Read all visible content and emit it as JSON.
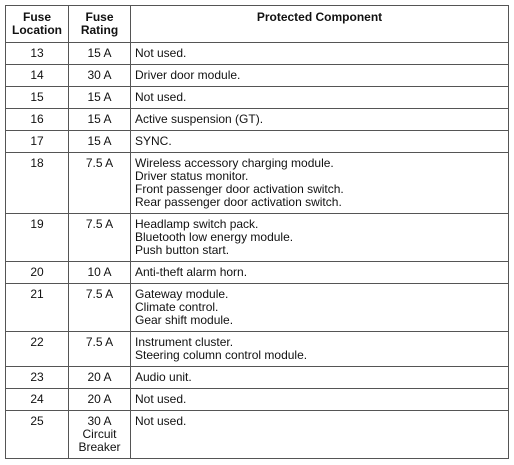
{
  "table": {
    "headers": {
      "location": [
        "Fuse",
        "Location"
      ],
      "rating": [
        "Fuse",
        "Rating"
      ],
      "component": "Protected Component"
    },
    "rows": [
      {
        "location": "13",
        "rating": [
          "15 A"
        ],
        "components": [
          "Not used."
        ]
      },
      {
        "location": "14",
        "rating": [
          "30 A"
        ],
        "components": [
          "Driver door module."
        ]
      },
      {
        "location": "15",
        "rating": [
          "15 A"
        ],
        "components": [
          "Not used."
        ]
      },
      {
        "location": "16",
        "rating": [
          "15 A"
        ],
        "components": [
          "Active suspension (GT)."
        ]
      },
      {
        "location": "17",
        "rating": [
          "15 A"
        ],
        "components": [
          "SYNC."
        ]
      },
      {
        "location": "18",
        "rating": [
          "7.5 A"
        ],
        "components": [
          "Wireless accessory charging module.",
          "Driver status monitor.",
          "Front passenger door activation switch.",
          "Rear passenger door activation switch."
        ]
      },
      {
        "location": "19",
        "rating": [
          "7.5 A"
        ],
        "components": [
          "Headlamp switch pack.",
          "Bluetooth low energy module.",
          "Push button start."
        ]
      },
      {
        "location": "20",
        "rating": [
          "10 A"
        ],
        "components": [
          "Anti-theft alarm horn."
        ]
      },
      {
        "location": "21",
        "rating": [
          "7.5 A"
        ],
        "components": [
          "Gateway module.",
          "Climate control.",
          "Gear shift module."
        ]
      },
      {
        "location": "22",
        "rating": [
          "7.5 A"
        ],
        "components": [
          "Instrument cluster.",
          "Steering column control module."
        ]
      },
      {
        "location": "23",
        "rating": [
          "20 A"
        ],
        "components": [
          "Audio unit."
        ]
      },
      {
        "location": "24",
        "rating": [
          "20 A"
        ],
        "components": [
          "Not used."
        ]
      },
      {
        "location": "25",
        "rating": [
          "30 A",
          "Circuit",
          "Breaker"
        ],
        "components": [
          "Not used."
        ]
      }
    ]
  }
}
